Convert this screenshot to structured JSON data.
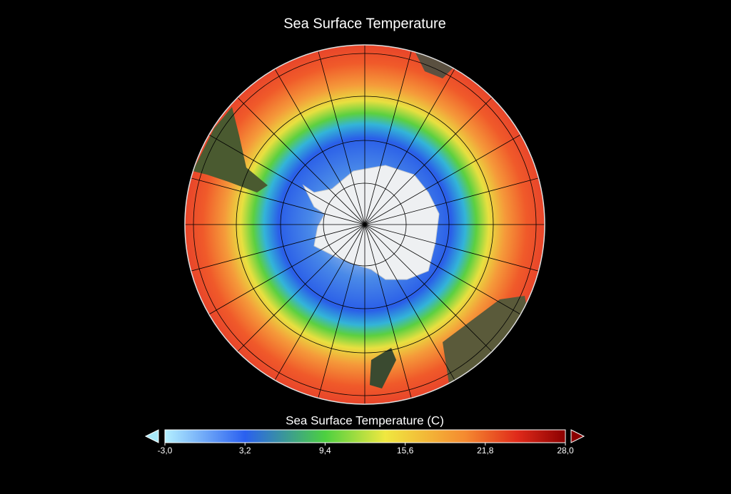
{
  "title": "Sea Surface Temperature",
  "colorbar": {
    "label": "Sea Surface Temperature (C)",
    "range": [
      -3,
      28
    ],
    "ticks": [
      {
        "value": -3,
        "label": "-3,0"
      },
      {
        "value": 3.2,
        "label": "3,2"
      },
      {
        "value": 9.4,
        "label": "9,4"
      },
      {
        "value": 15.6,
        "label": "15,6"
      },
      {
        "value": 21.8,
        "label": "21,8"
      },
      {
        "value": 28,
        "label": "28,0"
      }
    ]
  }
}
